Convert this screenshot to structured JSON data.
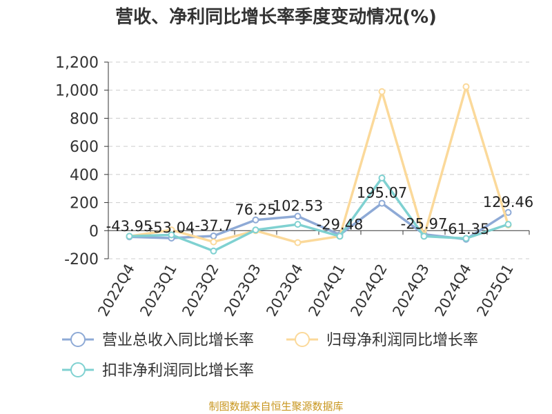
{
  "chart_data": {
    "type": "line",
    "title": "营收、净利同比增长率季度变动情况(%)",
    "categories": [
      "2022Q4",
      "2023Q1",
      "2023Q2",
      "2023Q3",
      "2023Q4",
      "2024Q1",
      "2024Q2",
      "2024Q3",
      "2024Q4",
      "2025Q1"
    ],
    "ylim": [
      -200,
      1200
    ],
    "yticks": [
      -200,
      0,
      200,
      400,
      600,
      800,
      1000,
      1200
    ],
    "ytick_labels": [
      "-200",
      "0",
      "200",
      "400",
      "600",
      "800",
      "1,000",
      "1,200"
    ],
    "grid": true,
    "legend_position": "bottom",
    "series": [
      {
        "name": "营业总收入同比增长率",
        "color": "#8eaad6",
        "values": [
          -43.95,
          -53.04,
          -37.7,
          76.25,
          102.53,
          -29.48,
          195.07,
          -25.97,
          -61.35,
          129.46
        ],
        "labels": [
          "-43.95",
          "-53.04",
          "-37.7",
          "76.25",
          "102.53",
          "-29.48",
          "195.07",
          "-25.97",
          "-61.35",
          "129.46"
        ]
      },
      {
        "name": "归母净利润同比增长率",
        "color": "#fbd99a",
        "values": [
          -40,
          5,
          -80,
          0,
          -85,
          -40,
          990,
          -40,
          1025,
          40
        ]
      },
      {
        "name": "扣非净利润同比增长率",
        "color": "#7fd1d1",
        "values": [
          -40,
          -30,
          -145,
          5,
          45,
          -40,
          375,
          -40,
          -55,
          45
        ]
      }
    ]
  },
  "source": "制图数据来自恒生聚源数据库"
}
